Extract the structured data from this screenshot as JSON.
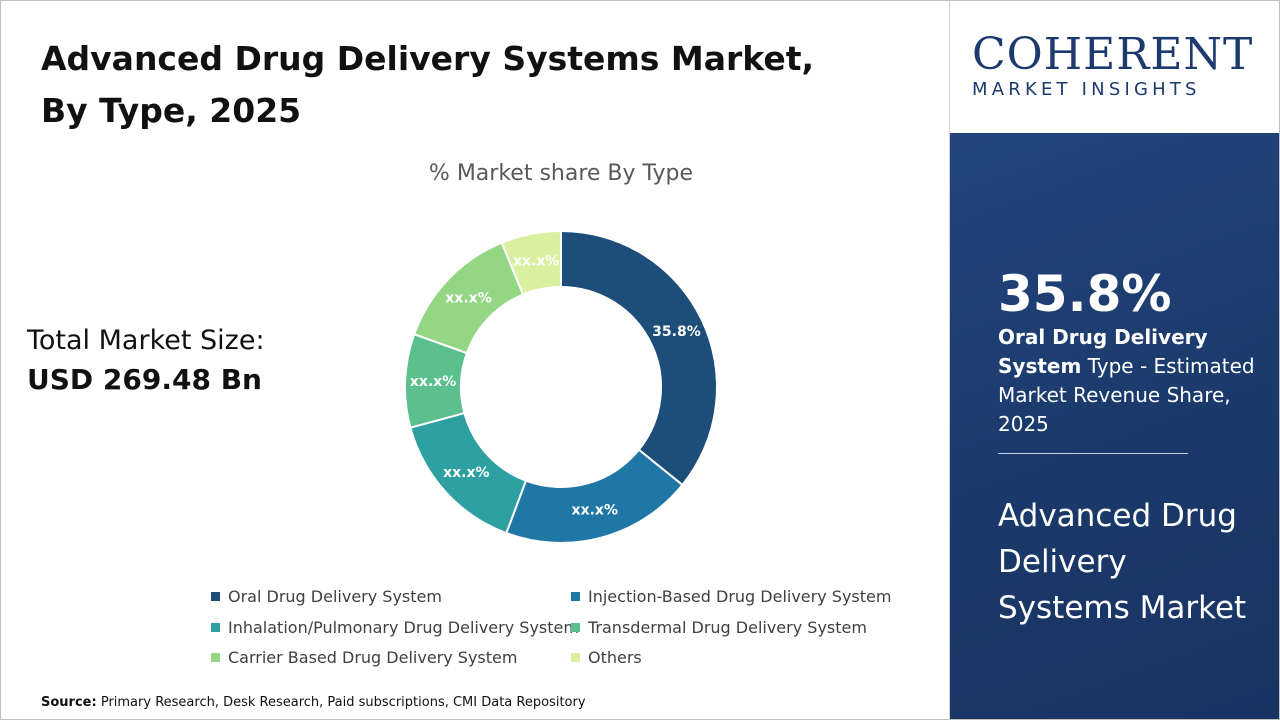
{
  "title": "Advanced Drug Delivery Systems Market, By Type, 2025",
  "chart_data": {
    "type": "donut",
    "subtitle": "% Market share By Type",
    "categories": [
      "Oral Drug Delivery System",
      "Injection-Based Drug Delivery System",
      "Inhalation/Pulmonary Drug Delivery System",
      "Transdermal Drug Delivery System",
      "Carrier Based Drug Delivery System",
      "Others"
    ],
    "values": [
      35.8,
      19.9,
      15.1,
      9.7,
      13.3,
      6.2
    ],
    "value_labels": [
      "35.8%",
      "xx.x%",
      "xx.x%",
      "xx.x%",
      "xx.x%",
      "xx.x%"
    ],
    "colors": [
      "#1d4e79",
      "#1f77a6",
      "#2ea0a2",
      "#5cbf8e",
      "#93d785",
      "#d9f0a0"
    ]
  },
  "total_market": {
    "label": "Total Market Size:",
    "value": "USD 269.48 Bn"
  },
  "source": {
    "label": "Source:",
    "text": "Primary Research, Desk Research, Paid subscriptions, CMI Data Repository"
  },
  "logo": {
    "name": "COHERENT",
    "tagline": "MARKET INSIGHTS"
  },
  "highlight": {
    "value": "35.8%",
    "bold": "Oral Drug Delivery System",
    "text": "Type - Estimated Market Revenue Share, 2025"
  },
  "market_name": "Advanced Drug Delivery Systems Market"
}
